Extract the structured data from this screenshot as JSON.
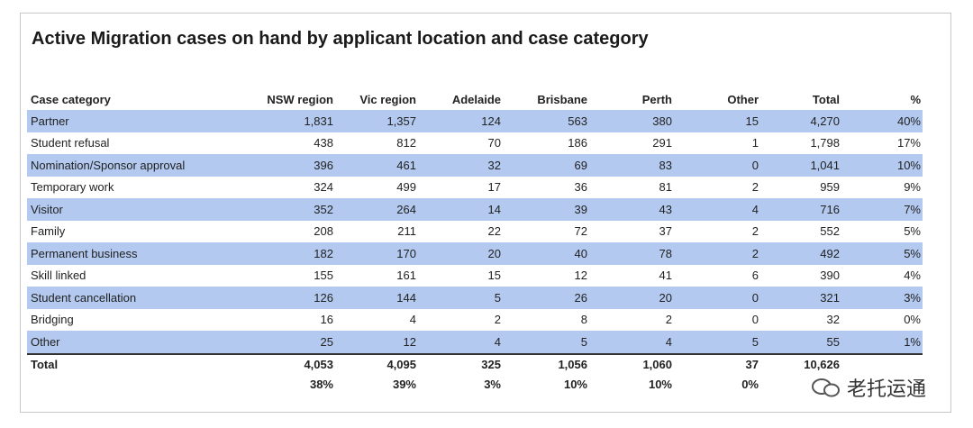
{
  "title": "Active Migration cases on hand by applicant location and case category",
  "table": {
    "header": [
      "Case category",
      "NSW region",
      "Vic region",
      "Adelaide",
      "Brisbane",
      "Perth",
      "Other",
      "Total",
      "%"
    ],
    "rows": [
      [
        "Partner",
        "1,831",
        "1,357",
        "124",
        "563",
        "380",
        "15",
        "4,270",
        "40%"
      ],
      [
        "Student refusal",
        "438",
        "812",
        "70",
        "186",
        "291",
        "1",
        "1,798",
        "17%"
      ],
      [
        "Nomination/Sponsor approval",
        "396",
        "461",
        "32",
        "69",
        "83",
        "0",
        "1,041",
        "10%"
      ],
      [
        "Temporary work",
        "324",
        "499",
        "17",
        "36",
        "81",
        "2",
        "959",
        "9%"
      ],
      [
        "Visitor",
        "352",
        "264",
        "14",
        "39",
        "43",
        "4",
        "716",
        "7%"
      ],
      [
        "Family",
        "208",
        "211",
        "22",
        "72",
        "37",
        "2",
        "552",
        "5%"
      ],
      [
        "Permanent business",
        "182",
        "170",
        "20",
        "40",
        "78",
        "2",
        "492",
        "5%"
      ],
      [
        "Skill linked",
        "155",
        "161",
        "15",
        "12",
        "41",
        "6",
        "390",
        "4%"
      ],
      [
        "Student cancellation",
        "126",
        "144",
        "5",
        "26",
        "20",
        "0",
        "321",
        "3%"
      ],
      [
        "Bridging",
        "16",
        "4",
        "2",
        "8",
        "2",
        "0",
        "32",
        "0%"
      ],
      [
        "Other",
        "25",
        "12",
        "4",
        "5",
        "4",
        "5",
        "55",
        "1%"
      ]
    ],
    "total": [
      "Total",
      "4,053",
      "4,095",
      "325",
      "1,056",
      "1,060",
      "37",
      "10,626"
    ],
    "total_share": [
      "38%",
      "39%",
      "3%",
      "10%",
      "10%",
      "0%"
    ]
  },
  "watermark": "老托运通"
}
